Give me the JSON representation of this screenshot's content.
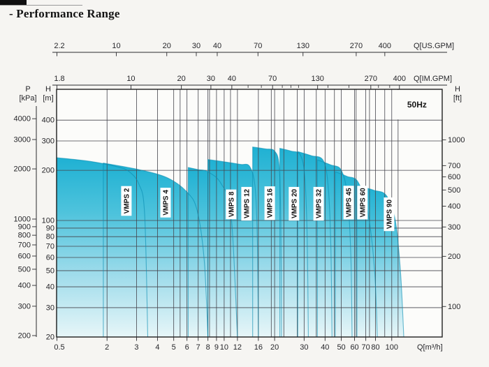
{
  "page": {
    "title": "- Performance Range"
  },
  "chart_data": {
    "type": "area",
    "title": "- Performance Range",
    "frequency": "50Hz",
    "scale": "log-log",
    "axes": {
      "bottom": {
        "unit": "Q[m³/h]",
        "ticks": [
          0.5,
          2,
          3,
          4,
          5,
          6,
          7,
          8,
          9,
          10,
          12,
          16,
          20,
          30,
          40,
          50,
          60,
          70,
          80,
          100
        ],
        "range": [
          0.5,
          200
        ]
      },
      "top_us": {
        "unit": "Q[US.GPM]",
        "ticks": [
          2.2,
          10,
          20,
          30,
          40,
          70,
          130,
          270,
          400
        ]
      },
      "top_im": {
        "unit": "Q[IM.GPM]",
        "ticks": [
          1.8,
          10,
          20,
          30,
          40,
          70,
          130,
          270,
          400
        ],
        "minor_ticks": [
          50,
          60,
          80,
          90,
          100,
          150,
          200,
          300,
          350
        ]
      },
      "left_kpa": {
        "unit_lines": [
          "P",
          "[kPa]"
        ],
        "ticks": [
          4000,
          3000,
          2000,
          1000,
          900,
          800,
          700,
          600,
          500,
          400,
          300,
          200
        ]
      },
      "left_m": {
        "unit_lines": [
          "H",
          "[m]"
        ],
        "ticks": [
          400,
          300,
          200,
          100,
          90,
          80,
          70,
          60,
          50,
          40,
          30,
          20
        ],
        "range": [
          20,
          612
        ]
      },
      "right_ft": {
        "unit_lines": [
          "H",
          "[ft]"
        ],
        "ticks": [
          1000,
          700,
          600,
          500,
          400,
          300,
          200,
          100
        ]
      }
    },
    "extra_vertical_gridlines_q": [
      5.46,
      8.18,
      10.91,
      19.1,
      22.7,
      27.3,
      35.46,
      45.5,
      61.3,
      73.66,
      90.84,
      109.1
    ],
    "series": [
      {
        "name": "VMPS 2",
        "label_at": [
          2.61,
          131
        ],
        "points_qh": [
          [
            1.0,
            238
          ],
          [
            1.6,
            226
          ],
          [
            2.3,
            210
          ],
          [
            2.7,
            197
          ],
          [
            3.1,
            165
          ],
          [
            3.35,
            110
          ],
          [
            3.5,
            20
          ]
        ]
      },
      {
        "name": "VMPS 4",
        "label_at": [
          4.47,
          128
        ],
        "points_qh": [
          [
            1.9,
            221
          ],
          [
            3.1,
            202
          ],
          [
            4.6,
            180
          ],
          [
            6.0,
            148
          ],
          [
            6.9,
            115
          ],
          [
            7.6,
            58
          ],
          [
            8.0,
            20
          ]
        ]
      },
      {
        "name": "VMPS 8",
        "label_at": [
          11.0,
          125
        ],
        "points_qh": [
          [
            6.1,
            208
          ],
          [
            7.0,
            202
          ],
          [
            8.0,
            196
          ],
          [
            9.6,
            166
          ],
          [
            11.0,
            108
          ],
          [
            12.0,
            20
          ]
        ]
      },
      {
        "name": "VMPS 12",
        "label_at": [
          13.6,
          126
        ],
        "points_qh": [
          [
            8.0,
            232
          ],
          [
            10.0,
            225
          ],
          [
            12.5,
            217
          ],
          [
            14.2,
            211
          ],
          [
            15.3,
            158
          ],
          [
            15.8,
            72
          ],
          [
            16.0,
            20
          ]
        ]
      },
      {
        "name": "VMPS 16",
        "label_at": [
          18.7,
          127
        ],
        "points_qh": [
          [
            14.8,
            276
          ],
          [
            17.5,
            269
          ],
          [
            20.0,
            261
          ],
          [
            21.3,
            210
          ],
          [
            21.8,
            95
          ],
          [
            22.0,
            20
          ]
        ]
      },
      {
        "name": "VMPS 20",
        "label_at": [
          26.1,
          126
        ],
        "points_qh": [
          [
            21.5,
            271
          ],
          [
            25.0,
            261
          ],
          [
            28.5,
            247
          ],
          [
            30.3,
            180
          ],
          [
            31.3,
            78
          ],
          [
            31.8,
            20
          ]
        ]
      },
      {
        "name": "VMPS 32",
        "label_at": [
          36.6,
          126
        ],
        "points_qh": [
          [
            27.5,
            259
          ],
          [
            33.0,
            245
          ],
          [
            39.0,
            229
          ],
          [
            41.8,
            158
          ],
          [
            43.3,
            70
          ],
          [
            44.0,
            20
          ]
        ]
      },
      {
        "name": "VMPS 45",
        "label_at": [
          55.3,
          128
        ],
        "points_qh": [
          [
            36.0,
            231
          ],
          [
            43.0,
            216
          ],
          [
            50.0,
            200
          ],
          [
            54.5,
            138
          ],
          [
            57.0,
            62
          ],
          [
            58.0,
            20
          ]
        ]
      },
      {
        "name": "VMPS 60",
        "label_at": [
          66.8,
          128
        ],
        "points_qh": [
          [
            46.0,
            196
          ],
          [
            54.0,
            184
          ],
          [
            63.0,
            170
          ],
          [
            72.0,
            112
          ],
          [
            79.0,
            50
          ],
          [
            82.0,
            20
          ]
        ]
      },
      {
        "name": "VMPS 90",
        "label_at": [
          96.3,
          109
        ],
        "points_qh": [
          [
            62.0,
            162
          ],
          [
            78.0,
            152
          ],
          [
            93.0,
            141
          ],
          [
            105.0,
            100
          ],
          [
            113.0,
            48
          ],
          [
            118.0,
            20
          ]
        ]
      }
    ]
  }
}
